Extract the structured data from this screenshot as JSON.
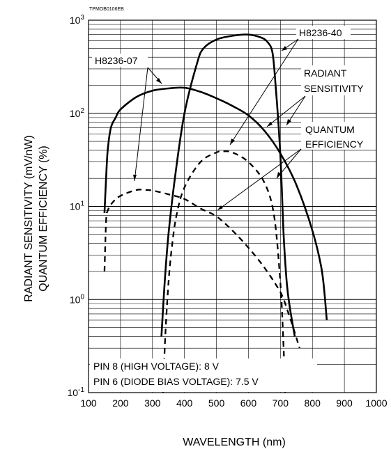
{
  "chart_data": {
    "type": "line",
    "title": "",
    "figure_code": "TPMOB0106EB",
    "xlabel": "WAVELENGTH (nm)",
    "ylabel_lines": [
      "RADIANT SENSITIVITY (mV/nW)",
      "QUANTUM EFFICIENCY (%)"
    ],
    "xlim": [
      100,
      1000
    ],
    "ylim": [
      0.1,
      1000
    ],
    "y_scale": "log",
    "grid": true,
    "x_ticks": [
      100,
      200,
      300,
      400,
      500,
      600,
      700,
      800,
      900,
      1000
    ],
    "x_tick_labels": [
      "100",
      "200",
      "300",
      "400",
      "500",
      "600",
      "700",
      "800",
      "900",
      "1000"
    ],
    "y_ticks": [
      {
        "value": 0.1,
        "base": "10",
        "exp": "-1"
      },
      {
        "value": 1,
        "base": "10",
        "exp": "0"
      },
      {
        "value": 10,
        "base": "10",
        "exp": "1"
      },
      {
        "value": 100,
        "base": "10",
        "exp": "2"
      },
      {
        "value": 1000,
        "base": "10",
        "exp": "3"
      }
    ],
    "annotations": {
      "h8236_40": "H8236-40",
      "h8236_07": "H8236-07",
      "radiant_1": "RADIANT",
      "radiant_2": "SENSITIVITY",
      "quantum_1": "QUANTUM",
      "quantum_2": "EFFICIENCY"
    },
    "conditions": [
      "PIN 8 (HIGH VOLTAGE): 8 V",
      "PIN 6 (DIODE BIAS VOLTAGE): 7.5 V"
    ],
    "series": [
      {
        "model": "H8236-07",
        "kind": "radiant sensitivity",
        "style": "solid",
        "x": [
          150,
          155,
          160,
          170,
          185,
          200,
          250,
          300,
          350,
          400,
          450,
          500,
          550,
          600,
          650,
          700,
          750,
          800,
          830,
          845
        ],
        "y": [
          8.5,
          20,
          40,
          70,
          90,
          110,
          150,
          175,
          185,
          188,
          170,
          145,
          120,
          95,
          65,
          37,
          17,
          5.5,
          2,
          0.6
        ]
      },
      {
        "model": "H8236-07",
        "kind": "quantum efficiency",
        "style": "dashed",
        "x": [
          150,
          155,
          160,
          175,
          200,
          250,
          280,
          300,
          350,
          400,
          450,
          500,
          550,
          600,
          650,
          700,
          720,
          740,
          760
        ],
        "y": [
          2,
          7,
          9,
          11,
          13,
          15,
          15,
          14.8,
          13.5,
          12,
          9.5,
          7.8,
          5.5,
          3.6,
          2.2,
          1.2,
          0.8,
          0.5,
          0.3
        ]
      },
      {
        "model": "H8236-40",
        "kind": "radiant sensitivity",
        "style": "solid",
        "x": [
          328,
          338,
          350,
          370,
          400,
          440,
          460,
          500,
          550,
          600,
          640,
          660,
          675,
          685,
          700,
          710,
          720,
          730,
          745
        ],
        "y": [
          0.4,
          1.5,
          5,
          20,
          100,
          350,
          500,
          620,
          680,
          700,
          650,
          580,
          450,
          200,
          35,
          5,
          1.5,
          0.8,
          0.4
        ]
      },
      {
        "model": "H8236-40",
        "kind": "quantum efficiency",
        "style": "dashed",
        "x": [
          333,
          340,
          350,
          360,
          375,
          400,
          450,
          500,
          520,
          550,
          600,
          650,
          680,
          700,
          710,
          715
        ],
        "y": [
          0.1,
          0.4,
          1.5,
          3.5,
          8,
          16,
          30,
          38,
          39,
          38,
          30,
          18,
          8,
          1.5,
          0.3,
          0.1
        ]
      }
    ]
  }
}
